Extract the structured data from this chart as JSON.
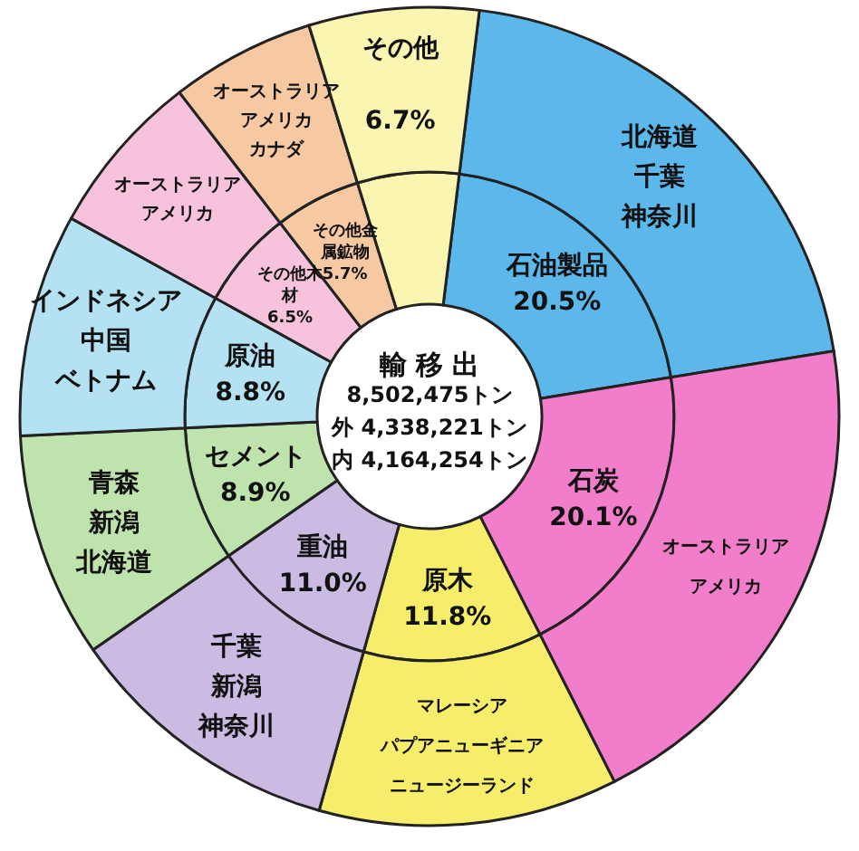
{
  "chart_data": {
    "type": "donut",
    "title": "輸 移 出",
    "categories": [
      "石油製品",
      "石炭",
      "原木",
      "重油",
      "セメント",
      "原油",
      "その他木材",
      "その他金属鉱物",
      "その他"
    ],
    "series": [
      {
        "values": [
          20.5,
          20.1,
          11.8,
          11.0,
          8.9,
          8.8,
          6.5,
          5.7,
          6.7
        ],
        "value_labels": [
          "20.5%",
          "20.1%",
          "11.8%",
          "11.0%",
          "8.9%",
          "8.8%",
          "6.5%",
          "5.7%",
          "6.7%"
        ]
      },
      {
        "values": [
          20.5,
          20.1,
          11.8,
          11.0,
          8.9,
          8.8,
          6.5,
          5.7,
          6.7
        ]
      }
    ],
    "colors": [
      "#5cb8ea",
      "#f27ecb",
      "#f6ee6a",
      "#cbbbe3",
      "#bfe3ad",
      "#b5e2f2",
      "#f7c3dc",
      "#f7c9a3",
      "#faf5b0"
    ],
    "legend": false,
    "annotations": [
      {
        "text": "北海道",
        "x": "石油製品"
      },
      {
        "text": "千葉",
        "x": "石油製品"
      },
      {
        "text": "神奈川",
        "x": "石油製品"
      },
      {
        "text": "オーストラリア",
        "x": "石炭"
      },
      {
        "text": "アメリカ",
        "x": "石炭"
      },
      {
        "text": "マレーシア",
        "x": "原木"
      },
      {
        "text": "パプアニューギニア",
        "x": "原木"
      },
      {
        "text": "ニュージーランド",
        "x": "原木"
      },
      {
        "text": "千葉",
        "x": "重油"
      },
      {
        "text": "新潟",
        "x": "重油"
      },
      {
        "text": "神奈川",
        "x": "重油"
      },
      {
        "text": "青森",
        "x": "セメント"
      },
      {
        "text": "新潟",
        "x": "セメント"
      },
      {
        "text": "北海道",
        "x": "セメント"
      },
      {
        "text": "インドネシア",
        "x": "原油"
      },
      {
        "text": "中国",
        "x": "原油"
      },
      {
        "text": "ベトナム",
        "x": "原油"
      },
      {
        "text": "オーストラリア",
        "x": "その他木材"
      },
      {
        "text": "アメリカ",
        "x": "その他木材"
      },
      {
        "text": "オーストラリア",
        "x": "その他金属鉱物"
      },
      {
        "text": "アメリカ",
        "x": "その他金属鉱物"
      },
      {
        "text": "カナダ",
        "x": "その他金属鉱物"
      },
      "8,502,475トン",
      "外 4,338,221トン",
      "内 4,164,254トン"
    ]
  }
}
